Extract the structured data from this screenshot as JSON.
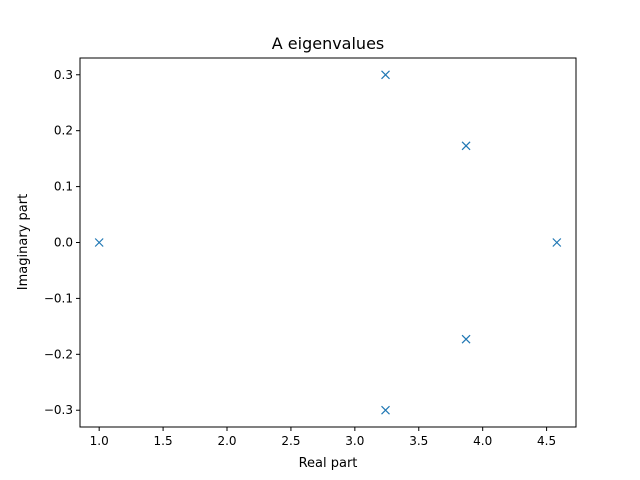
{
  "chart_data": {
    "type": "scatter",
    "title": "A eigenvalues",
    "xlabel": "Real part",
    "ylabel": "Imaginary part",
    "xlim": [
      0.85,
      4.73
    ],
    "ylim": [
      -0.33,
      0.33
    ],
    "x_ticks": [
      1.0,
      1.5,
      2.0,
      2.5,
      3.0,
      3.5,
      4.0,
      4.5
    ],
    "x_tick_labels": [
      "1.0",
      "1.5",
      "2.0",
      "2.5",
      "3.0",
      "3.5",
      "4.0",
      "4.5"
    ],
    "y_ticks": [
      -0.3,
      -0.2,
      -0.1,
      0.0,
      0.1,
      0.2,
      0.3
    ],
    "y_tick_labels": [
      "−0.3",
      "−0.2",
      "−0.1",
      "0.0",
      "0.1",
      "0.2",
      "0.3"
    ],
    "grid": false,
    "marker": "x",
    "color": "#1f77b4",
    "series": [
      {
        "points": [
          {
            "x": 1.0,
            "y": 0.0
          },
          {
            "x": 3.24,
            "y": 0.3
          },
          {
            "x": 3.24,
            "y": -0.3
          },
          {
            "x": 3.87,
            "y": 0.173
          },
          {
            "x": 3.87,
            "y": -0.173
          },
          {
            "x": 4.58,
            "y": 0.0
          }
        ]
      }
    ]
  }
}
